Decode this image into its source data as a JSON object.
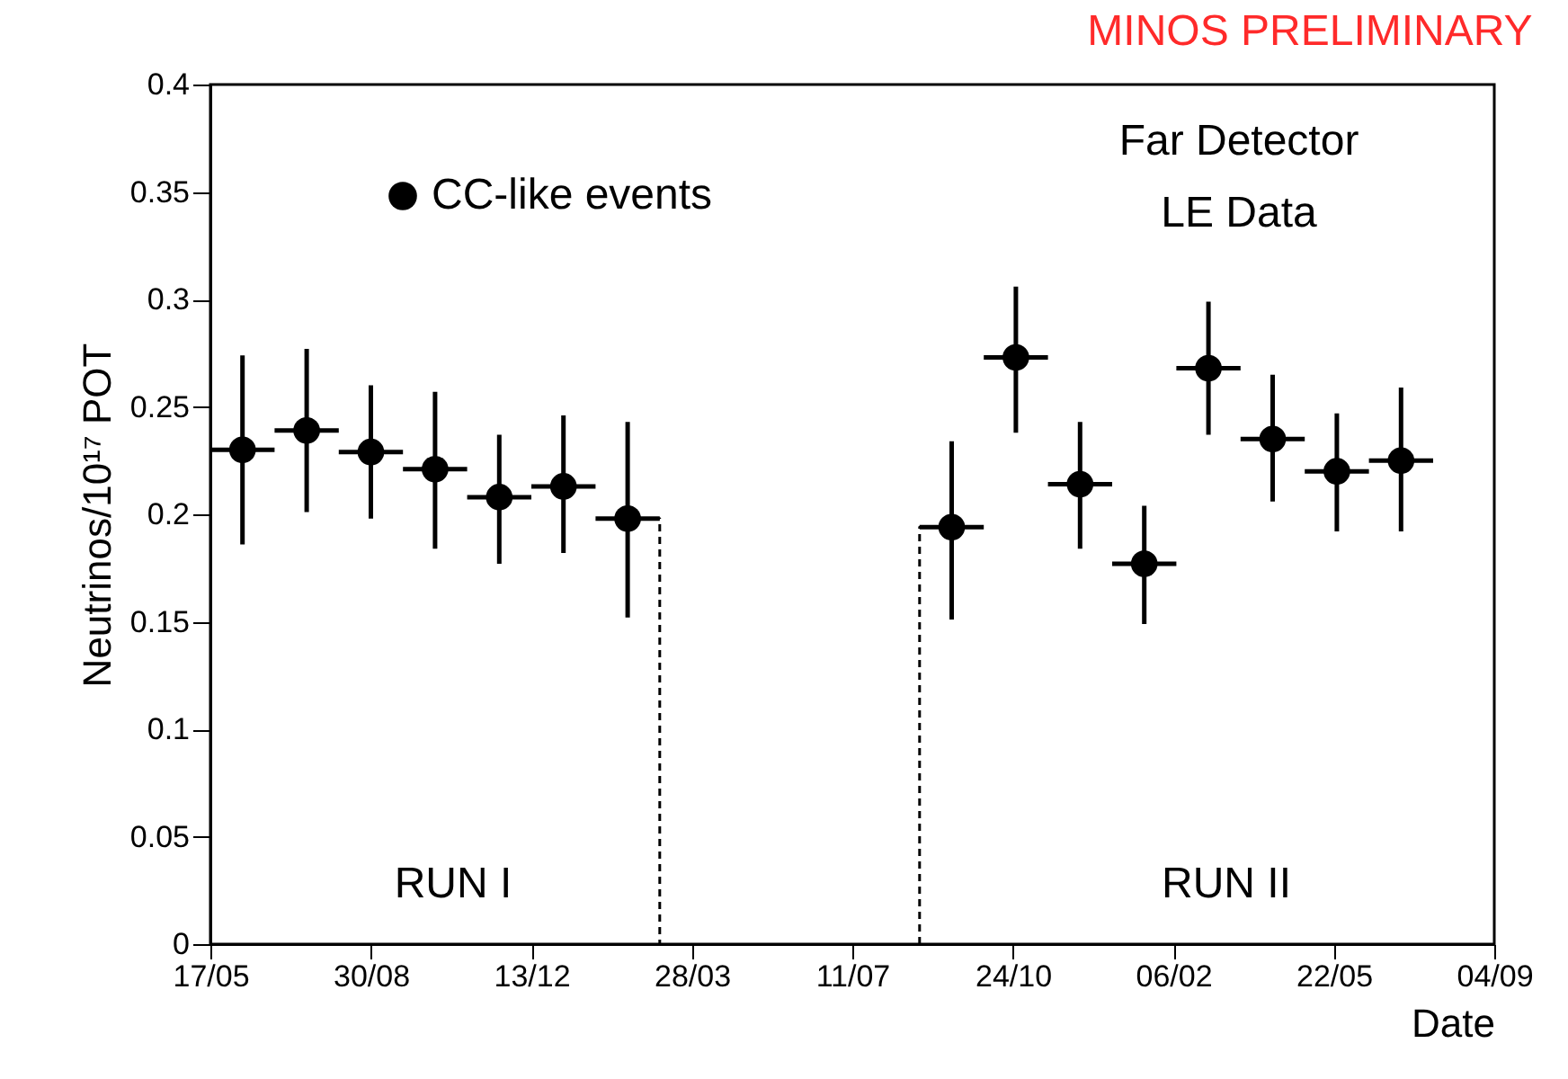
{
  "chart_data": {
    "type": "scatter",
    "title": "MINOS PRELIMINARY",
    "xlabel": "Date",
    "ylabel": "Neutrinos/10¹⁷ POT",
    "x": [
      "2005-06-07",
      "2005-07-19",
      "2005-08-30",
      "2005-10-11",
      "2005-11-22",
      "2006-01-03",
      "2006-02-14",
      "2006-09-14",
      "2006-10-26",
      "2006-12-07",
      "2007-01-18",
      "2007-03-01",
      "2007-04-12",
      "2007-05-24",
      "2007-07-05"
    ],
    "series": [
      {
        "name": "CC-like events",
        "color": "#000000",
        "marker": "circle",
        "values": [
          0.23,
          0.239,
          0.229,
          0.221,
          0.208,
          0.213,
          0.198,
          0.194,
          0.273,
          0.214,
          0.177,
          0.268,
          0.235,
          0.22,
          0.225
        ],
        "errors": [
          [
            0.186,
            0.274
          ],
          [
            0.201,
            0.277
          ],
          [
            0.198,
            0.26
          ],
          [
            0.184,
            0.257
          ],
          [
            0.177,
            0.237
          ],
          [
            0.182,
            0.246
          ],
          [
            0.152,
            0.243
          ],
          [
            0.151,
            0.234
          ],
          [
            0.238,
            0.306
          ],
          [
            0.184,
            0.243
          ],
          [
            0.149,
            0.204
          ],
          [
            0.237,
            0.299
          ],
          [
            0.206,
            0.265
          ],
          [
            0.192,
            0.247
          ],
          [
            0.192,
            0.259
          ]
        ],
        "xerrors": [
          21,
          21,
          21,
          21,
          21,
          21,
          21,
          21,
          21,
          21,
          21,
          21,
          21,
          21,
          21
        ]
      },
      {
        "type": "line",
        "color": "#000000",
        "line_style": "dashed",
        "x": [
          "2006-02-14",
          "2006-03-07",
          "2006-03-07"
        ],
        "values": [
          0.198,
          0.198,
          0
        ]
      },
      {
        "type": "line",
        "color": "#000000",
        "line_style": "dashed",
        "x": [
          "2006-08-24",
          "2006-08-24",
          "2006-09-14"
        ],
        "values": [
          0,
          0.194,
          0.194
        ]
      }
    ],
    "annotations": [
      "Far Detector",
      "LE Data",
      "RUN I",
      "RUN II"
    ],
    "xlim": [
      "2005-05-17",
      "2007-09-04"
    ],
    "xticks": [
      {
        "value": "2005-05-17",
        "label": "17/05"
      },
      {
        "value": "2005-08-30",
        "label": "30/08"
      },
      {
        "value": "2005-12-13",
        "label": "13/12"
      },
      {
        "value": "2006-03-28",
        "label": "28/03"
      },
      {
        "value": "2006-07-11",
        "label": "11/07"
      },
      {
        "value": "2006-10-24",
        "label": "24/10"
      },
      {
        "value": "2007-02-06",
        "label": "06/02"
      },
      {
        "value": "2007-05-22",
        "label": "22/05"
      },
      {
        "value": "2007-09-04",
        "label": "04/09"
      }
    ],
    "ylim": [
      0,
      0.4
    ],
    "yticks": [
      0,
      0.05,
      0.1,
      0.15,
      0.2,
      0.25,
      0.3,
      0.35,
      0.4
    ],
    "grid": false,
    "legend": "top left"
  }
}
